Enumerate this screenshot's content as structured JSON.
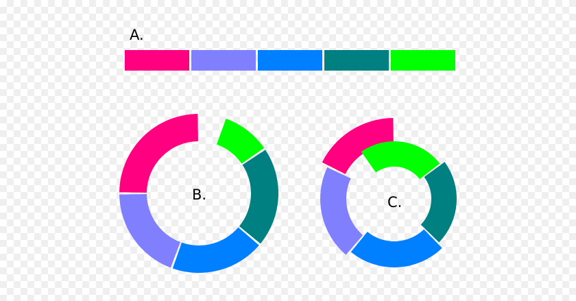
{
  "labels": {
    "a": "A.",
    "b": "B.",
    "c": "C."
  },
  "colors": [
    "#ff0080",
    "#8080ff",
    "#0080ff",
    "#008080",
    "#00ff00"
  ],
  "bar": {
    "segments": [
      {
        "color": "#ff0080"
      },
      {
        "color": "#8080ff"
      },
      {
        "color": "#0080ff"
      },
      {
        "color": "#008080"
      },
      {
        "color": "#00ff00"
      }
    ]
  },
  "ring_b": {
    "segments": [
      {
        "color": "#ff0080"
      },
      {
        "color": "#8080ff"
      },
      {
        "color": "#0080ff"
      },
      {
        "color": "#008080"
      },
      {
        "color": "#00ff00"
      }
    ]
  },
  "ring_c": {
    "segments": [
      {
        "color": "#ff0080"
      },
      {
        "color": "#8080ff"
      },
      {
        "color": "#0080ff"
      },
      {
        "color": "#008080"
      },
      {
        "color": "#00ff00"
      }
    ]
  }
}
